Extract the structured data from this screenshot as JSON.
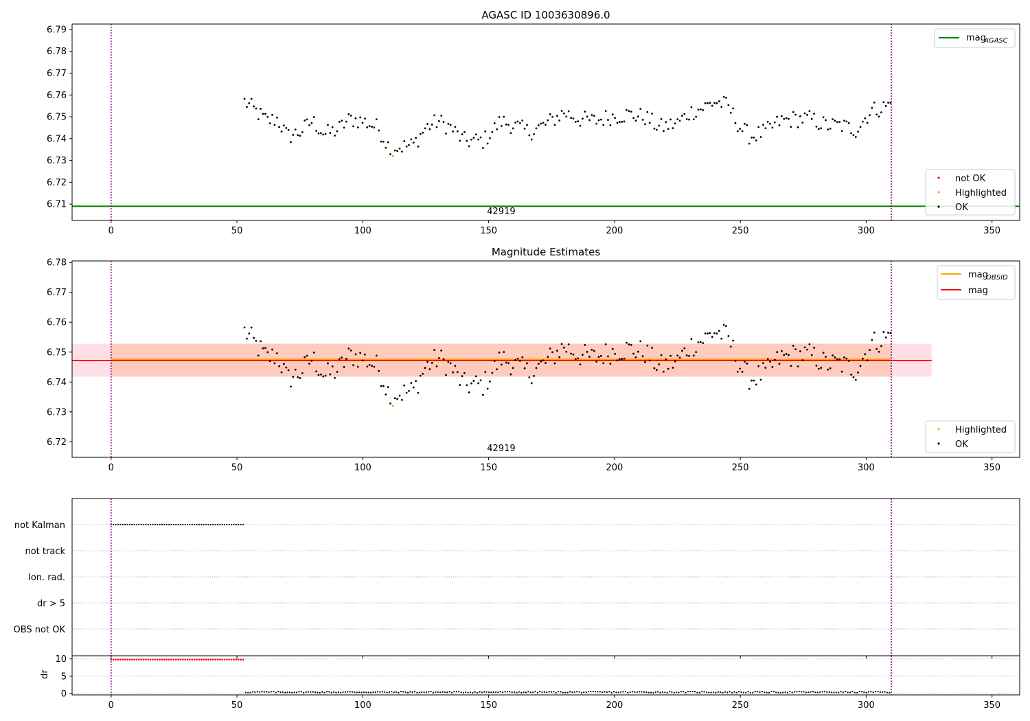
{
  "chart_data": [
    {
      "type": "scatter",
      "title": "AGASC ID 1003630896.0",
      "xlim": [
        -15.5,
        361
      ],
      "ylim": [
        6.7025,
        6.7925
      ],
      "x_ticks": [
        0,
        50,
        100,
        150,
        200,
        250,
        300,
        350
      ],
      "y_ticks": [
        6.71,
        6.72,
        6.73,
        6.74,
        6.75,
        6.76,
        6.77,
        6.78,
        6.79
      ],
      "y_tick_labels": [
        "6.71",
        "6.72",
        "6.73",
        "6.74",
        "6.75",
        "6.76",
        "6.77",
        "6.78",
        "6.79"
      ],
      "obsid_lines": [
        0,
        310
      ],
      "obsid_label": "42919",
      "obsid_label_x": 155,
      "mag_agasc": 6.709,
      "legend_top": {
        "entries": [
          {
            "label": "mag",
            "sub": "AGASC",
            "color": "#008000"
          }
        ],
        "position": "top-right"
      },
      "legend_bottom": {
        "entries": [
          {
            "label": "not OK",
            "color": "#ff0000"
          },
          {
            "label": "Highlighted",
            "color": "#ffa500"
          },
          {
            "label": "OK",
            "color": "#000000"
          }
        ],
        "position": "bottom-right"
      },
      "highlighted": [
        {
          "x": 112,
          "y": 6.732
        }
      ],
      "colors": {
        "ok": "#000000",
        "highlighted": "#ffa500",
        "not_ok": "#ff0000",
        "agasc": "#008000",
        "obsid_line": "#800080"
      }
    },
    {
      "type": "scatter",
      "title": "Magnitude Estimates",
      "xlim": [
        -15.5,
        361
      ],
      "ylim": [
        6.7148,
        6.7805
      ],
      "x_ticks": [
        0,
        50,
        100,
        150,
        200,
        250,
        300,
        350
      ],
      "y_ticks": [
        6.72,
        6.73,
        6.74,
        6.75,
        6.76,
        6.77,
        6.78
      ],
      "y_tick_labels": [
        "6.72",
        "6.73",
        "6.74",
        "6.75",
        "6.76",
        "6.77",
        "6.78"
      ],
      "obsid_lines": [
        0,
        310
      ],
      "obsid_label": "42919",
      "obsid_label_x": 155,
      "mag": 6.7473,
      "mag_band": [
        6.7418,
        6.7528
      ],
      "mag_obsid": 6.7473,
      "mag_obsid_band": [
        6.7418,
        6.7528
      ],
      "mag_x_range": [
        -15.5,
        326
      ],
      "mag_obsid_x_range": [
        0,
        310
      ],
      "legend_top": {
        "entries": [
          {
            "label": "mag",
            "sub": "OBSID",
            "color": "#ffa500"
          },
          {
            "label": "mag",
            "sub": "",
            "color": "#ff0000"
          }
        ],
        "position": "top-right"
      },
      "legend_bottom": {
        "entries": [
          {
            "label": "Highlighted",
            "color": "#ffa500"
          },
          {
            "label": "OK",
            "color": "#000000"
          }
        ],
        "position": "bottom-right"
      },
      "highlighted": [
        {
          "x": 112,
          "y": 6.732
        }
      ],
      "colors": {
        "ok": "#000000",
        "highlighted": "#ffa500",
        "mag": "#ff0000",
        "mag_obsid": "#ffa500",
        "band": "#ffc0cb",
        "band_obsid": "#ffd0b0"
      }
    },
    {
      "type": "scatter",
      "xlim": [
        -15.5,
        361
      ],
      "x_ticks": [
        0,
        50,
        100,
        150,
        200,
        250,
        300,
        350
      ],
      "flag_rows": [
        "not Kalman",
        "not track",
        "Ion. rad.",
        "dr > 5",
        "OBS not OK"
      ],
      "not_kalman_x_range": [
        0,
        52.5
      ],
      "obsid_lines": [
        0,
        310
      ]
    },
    {
      "type": "scatter",
      "ylabel": "dr",
      "xlim": [
        -15.5,
        361
      ],
      "ylim": [
        -0.4,
        10.9
      ],
      "x_ticks": [
        0,
        50,
        100,
        150,
        200,
        250,
        300,
        350
      ],
      "x_tick_labels": [
        "0",
        "50",
        "100",
        "150",
        "200",
        "250",
        "300",
        "350"
      ],
      "y_ticks": [
        0,
        5,
        10
      ],
      "y_tick_labels": [
        "0",
        "5",
        "10"
      ],
      "dr_high_value": 9.8,
      "dr_high_x_range": [
        0,
        52.5
      ],
      "dr_low_x_range": [
        53.5,
        310
      ],
      "dr_low_range": [
        0.2,
        0.6
      ],
      "obsid_lines": [
        0,
        310
      ]
    }
  ]
}
